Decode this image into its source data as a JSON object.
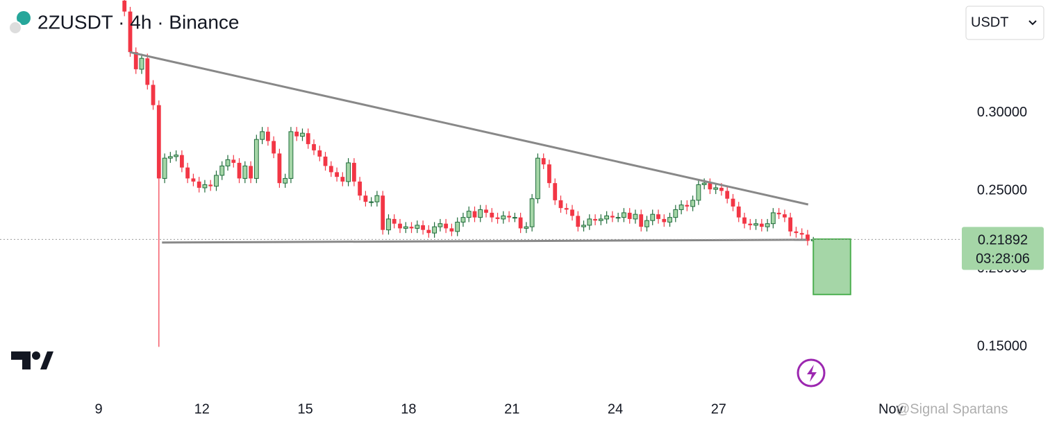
{
  "chart_data": {
    "type": "candlestick",
    "title": "2ZUSDT · 4h · Binance",
    "currency": "USDT",
    "last_price": {
      "value": 0.21892,
      "label": "0.21892"
    },
    "countdown": "03:28:06",
    "watermark": "@Signal Spartans",
    "up_color": "#a5d6a7",
    "up_border": "#1e6b3a",
    "down_color": "#f23645",
    "xlim": [
      6.137,
      34.06
    ],
    "xticks": [
      9,
      12,
      15,
      18,
      21,
      24,
      27,
      {
        "value": 32,
        "label": "Nov"
      }
    ],
    "ylim": [
      0.1213,
      0.3724
    ],
    "yticks": [
      {
        "value": 0.3,
        "label": "0.30000"
      },
      {
        "value": 0.25,
        "label": "0.25000"
      },
      {
        "value": 0.2,
        "label": "0.20000"
      },
      {
        "value": 0.15,
        "label": "0.15000"
      }
    ],
    "x": [
      9.75,
      9.917,
      10.083,
      10.25,
      10.417,
      10.583,
      10.75,
      10.917,
      11.083,
      11.25,
      11.417,
      11.583,
      11.75,
      11.917,
      12.083,
      12.25,
      12.417,
      12.583,
      12.75,
      12.917,
      13.083,
      13.25,
      13.417,
      13.583,
      13.75,
      13.917,
      14.083,
      14.25,
      14.417,
      14.583,
      14.75,
      14.917,
      15.083,
      15.25,
      15.417,
      15.583,
      15.75,
      15.917,
      16.083,
      16.25,
      16.417,
      16.583,
      16.75,
      16.917,
      17.083,
      17.25,
      17.417,
      17.583,
      17.75,
      17.917,
      18.083,
      18.25,
      18.417,
      18.583,
      18.75,
      18.917,
      19.083,
      19.25,
      19.417,
      19.583,
      19.75,
      19.917,
      20.083,
      20.25,
      20.417,
      20.583,
      20.75,
      20.917,
      21.083,
      21.25,
      21.417,
      21.583,
      21.75,
      21.917,
      22.083,
      22.25,
      22.417,
      22.583,
      22.75,
      22.917,
      23.083,
      23.25,
      23.417,
      23.583,
      23.75,
      23.917,
      24.083,
      24.25,
      24.417,
      24.583,
      24.75,
      24.917,
      25.083,
      25.25,
      25.417,
      25.583,
      25.75,
      25.917,
      26.083,
      26.25,
      26.417,
      26.583,
      26.75,
      26.917,
      27.083,
      27.25,
      27.417,
      27.583,
      27.75,
      27.917,
      28.083,
      28.25,
      28.417,
      28.583,
      28.75,
      28.917,
      29.083,
      29.25,
      29.417,
      29.583,
      29.75
    ],
    "open": [
      0.372,
      0.365,
      0.339,
      0.328,
      0.335,
      0.318,
      0.305,
      0.258,
      0.271,
      0.272,
      0.273,
      0.265,
      0.258,
      0.256,
      0.252,
      0.254,
      0.253,
      0.26,
      0.266,
      0.27,
      0.268,
      0.258,
      0.266,
      0.258,
      0.283,
      0.288,
      0.282,
      0.274,
      0.255,
      0.258,
      0.288,
      0.285,
      0.287,
      0.28,
      0.276,
      0.272,
      0.266,
      0.262,
      0.259,
      0.256,
      0.268,
      0.256,
      0.247,
      0.243,
      0.243,
      0.247,
      0.225,
      0.232,
      0.229,
      0.226,
      0.227,
      0.226,
      0.228,
      0.225,
      0.223,
      0.227,
      0.229,
      0.226,
      0.224,
      0.23,
      0.233,
      0.237,
      0.233,
      0.238,
      0.236,
      0.233,
      0.232,
      0.234,
      0.233,
      0.233,
      0.226,
      0.227,
      0.245,
      0.271,
      0.267,
      0.255,
      0.244,
      0.239,
      0.238,
      0.234,
      0.227,
      0.228,
      0.232,
      0.231,
      0.232,
      0.234,
      0.233,
      0.233,
      0.236,
      0.232,
      0.235,
      0.227,
      0.231,
      0.235,
      0.232,
      0.23,
      0.233,
      0.238,
      0.241,
      0.24,
      0.244,
      0.254,
      0.255,
      0.251,
      0.252,
      0.25,
      0.245,
      0.24,
      0.233,
      0.229,
      0.228,
      0.229,
      0.227,
      0.229,
      0.236,
      0.235,
      0.233,
      0.224,
      0.223,
      0.222,
      0.218
    ],
    "high": [
      0.375,
      0.368,
      0.342,
      0.338,
      0.338,
      0.321,
      0.308,
      0.274,
      0.275,
      0.276,
      0.276,
      0.268,
      0.261,
      0.259,
      0.257,
      0.257,
      0.263,
      0.269,
      0.273,
      0.273,
      0.271,
      0.269,
      0.269,
      0.286,
      0.291,
      0.291,
      0.285,
      0.277,
      0.261,
      0.291,
      0.291,
      0.29,
      0.29,
      0.283,
      0.279,
      0.275,
      0.269,
      0.265,
      0.262,
      0.271,
      0.271,
      0.259,
      0.25,
      0.246,
      0.25,
      0.25,
      0.235,
      0.235,
      0.232,
      0.23,
      0.23,
      0.231,
      0.231,
      0.228,
      0.23,
      0.232,
      0.232,
      0.229,
      0.233,
      0.236,
      0.24,
      0.24,
      0.241,
      0.241,
      0.239,
      0.236,
      0.237,
      0.237,
      0.236,
      0.236,
      0.23,
      0.248,
      0.274,
      0.274,
      0.27,
      0.258,
      0.247,
      0.242,
      0.241,
      0.237,
      0.231,
      0.235,
      0.235,
      0.235,
      0.237,
      0.237,
      0.236,
      0.239,
      0.239,
      0.238,
      0.238,
      0.234,
      0.238,
      0.238,
      0.235,
      0.236,
      0.241,
      0.244,
      0.244,
      0.247,
      0.257,
      0.258,
      0.258,
      0.255,
      0.255,
      0.253,
      0.248,
      0.243,
      0.236,
      0.232,
      0.232,
      0.232,
      0.232,
      0.239,
      0.239,
      0.238,
      0.236,
      0.227,
      0.226,
      0.225,
      0.2205
    ],
    "low": [
      0.362,
      0.336,
      0.325,
      0.325,
      0.315,
      0.302,
      0.15,
      0.255,
      0.268,
      0.269,
      0.262,
      0.255,
      0.253,
      0.249,
      0.249,
      0.25,
      0.25,
      0.257,
      0.263,
      0.265,
      0.255,
      0.255,
      0.255,
      0.255,
      0.28,
      0.279,
      0.271,
      0.252,
      0.252,
      0.255,
      0.282,
      0.282,
      0.277,
      0.273,
      0.269,
      0.263,
      0.259,
      0.256,
      0.253,
      0.253,
      0.253,
      0.244,
      0.24,
      0.24,
      0.24,
      0.222,
      0.222,
      0.226,
      0.223,
      0.223,
      0.223,
      0.223,
      0.222,
      0.22,
      0.22,
      0.224,
      0.223,
      0.221,
      0.221,
      0.227,
      0.23,
      0.23,
      0.23,
      0.233,
      0.23,
      0.229,
      0.229,
      0.23,
      0.23,
      0.223,
      0.223,
      0.224,
      0.242,
      0.264,
      0.252,
      0.241,
      0.236,
      0.235,
      0.231,
      0.224,
      0.224,
      0.225,
      0.228,
      0.228,
      0.229,
      0.23,
      0.23,
      0.23,
      0.229,
      0.229,
      0.224,
      0.224,
      0.228,
      0.229,
      0.227,
      0.227,
      0.23,
      0.235,
      0.237,
      0.237,
      0.241,
      0.251,
      0.248,
      0.248,
      0.247,
      0.242,
      0.237,
      0.23,
      0.226,
      0.225,
      0.225,
      0.224,
      0.224,
      0.226,
      0.232,
      0.23,
      0.221,
      0.22,
      0.219,
      0.215,
      0.2175
    ],
    "close": [
      0.365,
      0.339,
      0.328,
      0.335,
      0.318,
      0.305,
      0.258,
      0.271,
      0.272,
      0.273,
      0.265,
      0.258,
      0.256,
      0.252,
      0.254,
      0.253,
      0.26,
      0.266,
      0.27,
      0.268,
      0.258,
      0.266,
      0.258,
      0.283,
      0.288,
      0.282,
      0.274,
      0.255,
      0.258,
      0.288,
      0.285,
      0.287,
      0.28,
      0.276,
      0.272,
      0.266,
      0.262,
      0.259,
      0.256,
      0.268,
      0.256,
      0.247,
      0.243,
      0.243,
      0.247,
      0.225,
      0.232,
      0.229,
      0.226,
      0.227,
      0.226,
      0.228,
      0.225,
      0.223,
      0.227,
      0.229,
      0.226,
      0.224,
      0.23,
      0.233,
      0.237,
      0.233,
      0.238,
      0.236,
      0.233,
      0.232,
      0.234,
      0.233,
      0.233,
      0.226,
      0.227,
      0.245,
      0.271,
      0.267,
      0.255,
      0.244,
      0.239,
      0.238,
      0.234,
      0.227,
      0.228,
      0.232,
      0.231,
      0.232,
      0.234,
      0.233,
      0.233,
      0.236,
      0.232,
      0.235,
      0.227,
      0.231,
      0.235,
      0.232,
      0.23,
      0.233,
      0.238,
      0.241,
      0.24,
      0.244,
      0.254,
      0.255,
      0.251,
      0.252,
      0.25,
      0.245,
      0.24,
      0.233,
      0.229,
      0.228,
      0.229,
      0.227,
      0.229,
      0.236,
      0.235,
      0.233,
      0.224,
      0.223,
      0.222,
      0.218,
      0.21892
    ],
    "trendlines": [
      {
        "x": [
          9.9,
          29.6
        ],
        "y": [
          0.339,
          0.2413
        ],
        "color": "#888888"
      },
      {
        "x": [
          10.84,
          29.54
        ],
        "y": [
          0.2169,
          0.2187
        ],
        "color": "#888888"
      }
    ],
    "target_box": {
      "x": [
        29.75,
        30.83
      ],
      "y": [
        0.2191,
        0.1836
      ],
      "color": "#a5d6a7"
    }
  }
}
